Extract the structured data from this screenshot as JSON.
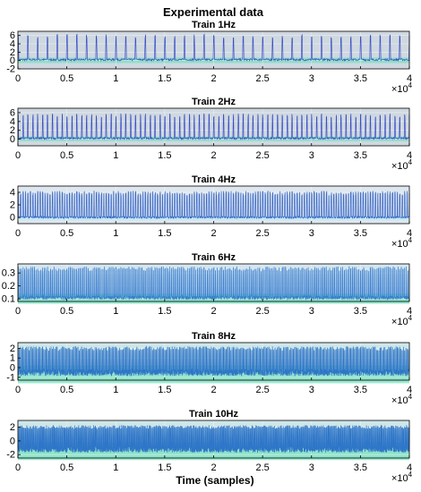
{
  "figure_title": "Experimental data",
  "xlabel": "Time (samples)",
  "chart_data": [
    {
      "type": "line",
      "title": "Train 1Hz",
      "frequency_hz": 1,
      "xlim": [
        0,
        40000
      ],
      "x_ticks": [
        "0",
        "0.5",
        "1",
        "1.5",
        "2",
        "2.5",
        "3",
        "3.5",
        "4"
      ],
      "x_exponent": "×10",
      "x_exponent_power": "4",
      "ylim": [
        -2,
        7
      ],
      "y_ticks": [
        "6",
        "4",
        "2",
        "0",
        "-2"
      ],
      "y_tick_values": [
        6,
        4,
        2,
        0,
        -2
      ],
      "baseline": 0.2,
      "peak": 6.3,
      "noise": 0.5,
      "n_spikes": 40,
      "grid": true,
      "colors": {
        "signal": "#3a4fc4",
        "background": "#cfd8e0",
        "band": "#7be2c0",
        "accent": "#d24cff"
      }
    },
    {
      "type": "line",
      "title": "Train 2Hz",
      "frequency_hz": 2,
      "xlim": [
        0,
        40000
      ],
      "x_ticks": [
        "0",
        "0.5",
        "1",
        "1.5",
        "2",
        "2.5",
        "3",
        "3.5",
        "4"
      ],
      "x_exponent": "×10",
      "x_exponent_power": "4",
      "ylim": [
        -1.5,
        7
      ],
      "y_ticks": [
        "6",
        "4",
        "2",
        "0"
      ],
      "y_tick_values": [
        6,
        4,
        2,
        0
      ],
      "baseline": 0.2,
      "peak": 5.8,
      "noise": 0.4,
      "n_spikes": 80,
      "grid": true,
      "colors": {
        "signal": "#3a4fc4",
        "background": "#cfd8e0",
        "band": "#7be2c0",
        "accent": "#d24cff"
      }
    },
    {
      "type": "line",
      "title": "Train 4Hz",
      "frequency_hz": 4,
      "xlim": [
        0,
        40000
      ],
      "x_ticks": [
        "0",
        "0.5",
        "1",
        "1.5",
        "2",
        "2.5",
        "3",
        "3.5",
        "4"
      ],
      "x_exponent": "×10",
      "x_exponent_power": "4",
      "ylim": [
        -1,
        5
      ],
      "y_ticks": [
        "4",
        "2",
        "0"
      ],
      "y_tick_values": [
        4,
        2,
        0
      ],
      "baseline": 0.0,
      "peak": 4.2,
      "noise": 0.3,
      "n_spikes": 160,
      "grid": true,
      "colors": {
        "signal": "#3a68c8",
        "background": "#dfe7ee",
        "band": "#bfe9f2",
        "accent": "#d24cff"
      }
    },
    {
      "type": "line",
      "title": "Train 6Hz",
      "frequency_hz": 6,
      "xlim": [
        0,
        40000
      ],
      "x_ticks": [
        "0",
        "0.5",
        "1",
        "1.5",
        "2",
        "2.5",
        "3",
        "3.5",
        "4"
      ],
      "x_exponent": "×10",
      "x_exponent_power": "4",
      "ylim": [
        0.08,
        0.37
      ],
      "y_ticks": [
        "0.3",
        "0.2",
        "0.1"
      ],
      "y_tick_values": [
        0.3,
        0.2,
        0.1
      ],
      "baseline": 0.11,
      "peak": 0.35,
      "noise": 0.03,
      "n_spikes": 240,
      "grid": true,
      "colors": {
        "signal": "#3a7fd0",
        "background": "#d6e6ee",
        "band": "#7be2c0",
        "accent": "#d24cff"
      }
    },
    {
      "type": "line",
      "title": "Train 8Hz",
      "frequency_hz": 8,
      "xlim": [
        0,
        40000
      ],
      "x_ticks": [
        "0",
        "0.5",
        "1",
        "1.5",
        "2",
        "2.5",
        "3",
        "3.5",
        "4"
      ],
      "x_exponent": "×10",
      "x_exponent_power": "4",
      "ylim": [
        -1.3,
        2.6
      ],
      "y_ticks": [
        "2",
        "1",
        "0",
        "-1"
      ],
      "y_tick_values": [
        2,
        1,
        0,
        -1
      ],
      "baseline": -0.5,
      "peak": 2.2,
      "noise": 0.7,
      "n_spikes": 320,
      "grid": true,
      "colors": {
        "signal": "#2f76c8",
        "background": "#cfe6e8",
        "band": "#7be2c0",
        "accent": "#d24cff"
      }
    },
    {
      "type": "line",
      "title": "Train 10Hz",
      "frequency_hz": 10,
      "xlim": [
        0,
        40000
      ],
      "x_ticks": [
        "0",
        "0.5",
        "1",
        "1.5",
        "2",
        "2.5",
        "3",
        "3.5",
        "4"
      ],
      "x_exponent": "×10",
      "x_exponent_power": "4",
      "ylim": [
        -2.5,
        3
      ],
      "y_ticks": [
        "2",
        "0",
        "-2"
      ],
      "y_tick_values": [
        2,
        0,
        -2
      ],
      "baseline": -1.2,
      "peak": 2.3,
      "noise": 1.0,
      "n_spikes": 400,
      "grid": true,
      "colors": {
        "signal": "#2f76c8",
        "background": "#cfe6e8",
        "band": "#7be2c0",
        "accent": "#d24cff"
      }
    }
  ]
}
